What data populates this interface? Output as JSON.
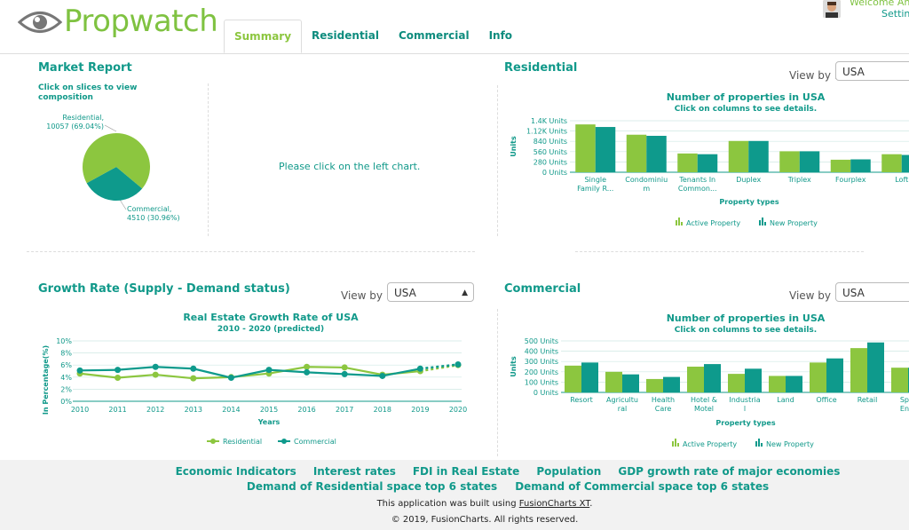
{
  "header": {
    "brand": "Propwatch",
    "welcome": "Welcome An",
    "settings": "Settin",
    "tabs": [
      "Summary",
      "Residential",
      "Commercial",
      "Info"
    ]
  },
  "market": {
    "title": "Market Report",
    "hint": "Click on slices to view composition",
    "placeholder": "Please click on the left chart.",
    "residential_label": "Residential,",
    "residential_value": "10057 (69.04%)",
    "commercial_label": "Commercial,",
    "commercial_value": "4510 (30.96%)"
  },
  "residential": {
    "title": "Residential",
    "viewby_label": "View by :",
    "viewby_value": "USA",
    "chart_title": "Number of properties in USA",
    "chart_sub": "Click on columns to see details."
  },
  "growth": {
    "title": "Growth Rate (Supply - Demand status)",
    "viewby_label": "View by :",
    "viewby_value": "USA",
    "chart_title": "Real Estate Growth Rate of USA",
    "chart_sub": "2010 - 2020 (predicted)"
  },
  "commercial": {
    "title": "Commercial",
    "viewby_label": "View by :",
    "viewby_value": "USA",
    "chart_title": "Number of properties in USA",
    "chart_sub": "Click on columns to see details."
  },
  "chart_data": [
    {
      "type": "pie",
      "categories": [
        "Residential",
        "Commercial"
      ],
      "values": [
        10057,
        4510
      ],
      "percents": [
        69.04,
        30.96
      ],
      "colors": [
        "#8cc63f",
        "#0e9a8c"
      ]
    },
    {
      "type": "bar",
      "title": "Number of properties in USA",
      "subtitle": "Click on columns to see details.",
      "xlabel": "Property types",
      "ylabel": "Units",
      "yticks": [
        "0 Units",
        "280 Units",
        "560 Units",
        "840 Units",
        "1.12K Units",
        "1.4K Units"
      ],
      "ylim": [
        0,
        1400
      ],
      "categories": [
        "Single Family R...",
        "Condominium",
        "Tenants In Common...",
        "Duplex",
        "Triplex",
        "Fourplex",
        "Loft"
      ],
      "category_lines": [
        [
          "Single",
          "Family R..."
        ],
        [
          "Condominiu",
          "m"
        ],
        [
          "Tenants In",
          "Common..."
        ],
        [
          "Duplex"
        ],
        [
          "Triplex"
        ],
        [
          "Fourplex"
        ],
        [
          "Loft"
        ]
      ],
      "series": [
        {
          "name": "Active Property",
          "values": [
            1300,
            1020,
            510,
            850,
            570,
            340,
            490
          ],
          "color": "#8cc63f"
        },
        {
          "name": "New Property",
          "values": [
            1230,
            990,
            490,
            850,
            570,
            350,
            470
          ],
          "color": "#0e9a8c"
        }
      ]
    },
    {
      "type": "line",
      "title": "Real Estate Growth Rate of USA",
      "subtitle": "2010 - 2020 (predicted)",
      "xlabel": "Years",
      "ylabel": "In Percentage(%)",
      "yticks": [
        "0%",
        "2%",
        "4%",
        "6%",
        "8%",
        "10%"
      ],
      "ylim": [
        0,
        10
      ],
      "x": [
        "2010",
        "2011",
        "2012",
        "2013",
        "2014",
        "2015",
        "2016",
        "2017",
        "2018",
        "2019",
        "2020"
      ],
      "series": [
        {
          "name": "Residential",
          "values": [
            4.6,
            3.9,
            4.4,
            3.8,
            4.0,
            4.6,
            5.7,
            5.6,
            4.4,
            5.0,
            6.0
          ],
          "color": "#8cc63f"
        },
        {
          "name": "Commercial",
          "values": [
            5.1,
            5.2,
            5.7,
            5.4,
            3.9,
            5.2,
            4.8,
            4.5,
            4.2,
            5.4,
            6.1
          ],
          "color": "#0e9a8c"
        }
      ]
    },
    {
      "type": "bar",
      "title": "Number of properties in USA",
      "subtitle": "Click on columns to see details.",
      "xlabel": "Property types",
      "ylabel": "Units",
      "yticks": [
        "0 Units",
        "100 Units",
        "200 Units",
        "300 Units",
        "400 Units",
        "500 Units"
      ],
      "ylim": [
        0,
        500
      ],
      "categories": [
        "Resort",
        "Agricultural",
        "Health Care",
        "Hotel & Motel",
        "Industrial",
        "Land",
        "Office",
        "Retail",
        "Sports Ente..."
      ],
      "category_lines": [
        [
          "Resort"
        ],
        [
          "Agricultu",
          "ral"
        ],
        [
          "Health",
          "Care"
        ],
        [
          "Hotel &",
          "Motel"
        ],
        [
          "Industria",
          "l"
        ],
        [
          "Land"
        ],
        [
          "Office"
        ],
        [
          "Retail"
        ],
        [
          "Spor",
          "Ente"
        ]
      ],
      "series": [
        {
          "name": "Active Property",
          "values": [
            260,
            200,
            130,
            250,
            180,
            160,
            290,
            430,
            240
          ],
          "color": "#8cc63f"
        },
        {
          "name": "New Property",
          "values": [
            290,
            175,
            150,
            275,
            230,
            160,
            330,
            485,
            240
          ],
          "color": "#0e9a8c"
        }
      ]
    }
  ],
  "footer": {
    "links_row1": [
      "Economic Indicators",
      "Interest rates",
      "FDI in Real Estate",
      "Population",
      "GDP growth rate of major economies"
    ],
    "links_row2": [
      "Demand of Residential space top 6 states",
      "Demand of Commercial space top 6 states"
    ],
    "built_prefix": "This application was built using",
    "built_link": "FusionCharts XT",
    "built_suffix": ".",
    "copyright": "© 2019, FusionCharts. All rights reserved."
  }
}
